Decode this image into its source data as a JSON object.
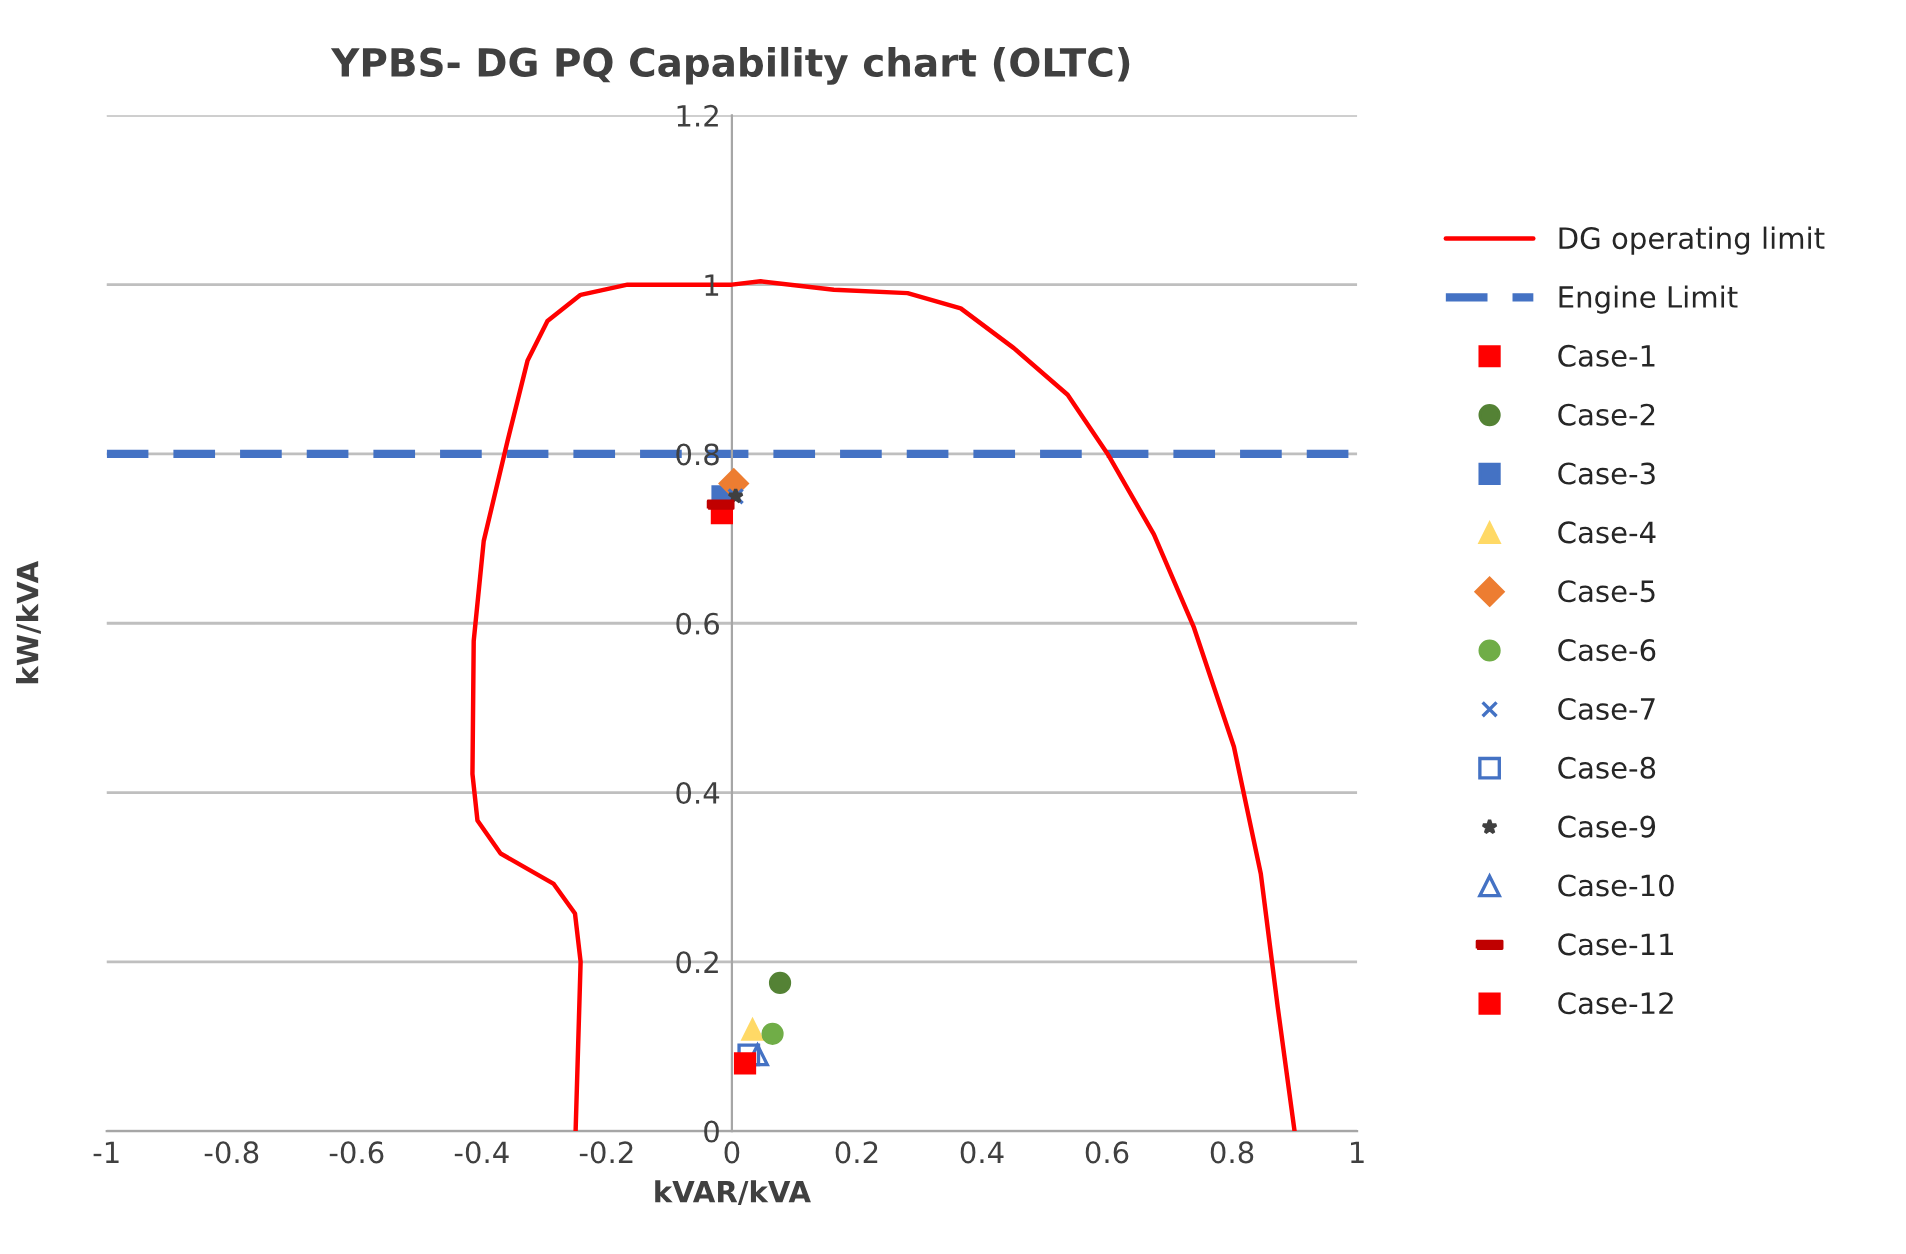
{
  "chart_data": {
    "type": "scatter",
    "title": "YPBS- DG PQ Capability chart (OLTC)",
    "xlabel": "kVAR/kVA",
    "ylabel": "kW/kVA",
    "xlim": [
      -1,
      1
    ],
    "xticks": [
      -1,
      -0.8,
      -0.6,
      -0.4,
      -0.2,
      0,
      0.2,
      0.4,
      0.6,
      0.8,
      1
    ],
    "ylim": [
      0,
      1.2
    ],
    "yticks": [
      0,
      0.2,
      0.4,
      0.6,
      0.8,
      1,
      1.2
    ],
    "grid": "y",
    "legend": "right",
    "ref_lines": [
      {
        "axis": "y",
        "value": 0.8,
        "label": "Engine Limit",
        "color": "#4472c4",
        "line_style": "dashed"
      }
    ],
    "series": [
      {
        "name": "DG operating limit",
        "type": "line",
        "color": "#ff0000",
        "marker": "none",
        "line_style": "solid",
        "x": [
          -0.25,
          -0.242,
          -0.251,
          -0.285,
          -0.37,
          -0.407,
          -0.415,
          -0.413,
          -0.397,
          -0.359,
          -0.327,
          -0.295,
          -0.242,
          -0.167,
          -0.082,
          0,
          0.046,
          0.163,
          0.281,
          0.366,
          0.451,
          0.537,
          0.601,
          0.675,
          0.739,
          0.803,
          0.846,
          0.873,
          0.9
        ],
        "values": [
          0,
          0.2,
          0.257,
          0.292,
          0.328,
          0.367,
          0.422,
          0.579,
          0.697,
          0.815,
          0.91,
          0.957,
          0.988,
          1.0,
          1.0,
          1.0,
          1.004,
          0.994,
          0.99,
          0.972,
          0.925,
          0.87,
          0.8,
          0.705,
          0.595,
          0.454,
          0.304,
          0.147,
          0
        ]
      },
      {
        "name": "Case-1",
        "color": "#ff0000",
        "marker": "square",
        "x": [
          -0.016
        ],
        "values": [
          0.73
        ]
      },
      {
        "name": "Case-2",
        "color": "#548235",
        "marker": "circle",
        "x": [
          0.077
        ],
        "values": [
          0.175
        ]
      },
      {
        "name": "Case-3",
        "color": "#4472c4",
        "marker": "square",
        "x": [
          -0.015
        ],
        "values": [
          0.75
        ]
      },
      {
        "name": "Case-4",
        "color": "#ffd966",
        "marker": "triangle",
        "x": [
          0.033
        ],
        "values": [
          0.12
        ]
      },
      {
        "name": "Case-5",
        "color": "#ed7d31",
        "marker": "diamond",
        "x": [
          0.003
        ],
        "values": [
          0.765
        ]
      },
      {
        "name": "Case-6",
        "color": "#70ad47",
        "marker": "circle",
        "x": [
          0.065
        ],
        "values": [
          0.115
        ]
      },
      {
        "name": "Case-7",
        "color": "#4472c4",
        "marker": "cross",
        "x": [
          0.006
        ],
        "values": [
          0.75
        ]
      },
      {
        "name": "Case-8",
        "color": "#4472c4",
        "marker": "square-open",
        "x": [
          0.027
        ],
        "values": [
          0.09
        ]
      },
      {
        "name": "Case-9",
        "color": "#404040",
        "marker": "star",
        "x": [
          0.006
        ],
        "values": [
          0.75
        ]
      },
      {
        "name": "Case-10",
        "color": "#4472c4",
        "marker": "triangle-open",
        "x": [
          0.041
        ],
        "values": [
          0.09
        ]
      },
      {
        "name": "Case-11",
        "color": "#c00000",
        "x": [
          -0.018
        ],
        "values": [
          0.74
        ]
      },
      {
        "name": "Case-12",
        "color": "#ff0000",
        "marker": "square",
        "x": [
          0.021
        ],
        "values": [
          0.08
        ]
      }
    ]
  }
}
